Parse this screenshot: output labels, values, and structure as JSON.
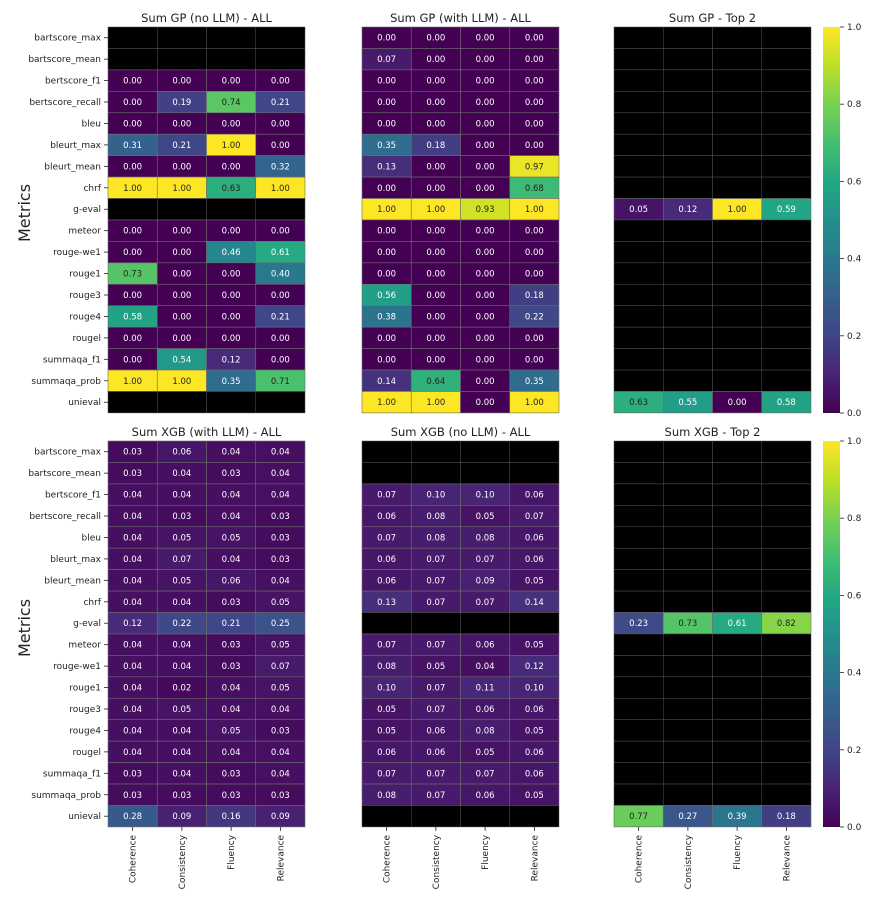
{
  "row_labels": [
    "bartscore_max",
    "bartscore_mean",
    "bertscore_f1",
    "bertscore_recall",
    "bleu",
    "bleurt_max",
    "bleurt_mean",
    "chrf",
    "g-eval",
    "meteor",
    "rouge-we1",
    "rouge1",
    "rouge3",
    "rouge4",
    "rougel",
    "summaqa_f1",
    "summaqa_prob",
    "unieval"
  ],
  "col_labels": [
    "Coherence",
    "Consistency",
    "Fluency",
    "Relevance"
  ],
  "ylabel": "Metrics",
  "colorbar_ticks": [
    "0.0",
    "0.2",
    "0.4",
    "0.6",
    "0.8",
    "1.0"
  ],
  "chart_data": [
    {
      "type": "heatmap",
      "title": "Sum GP (no LLM) - ALL",
      "rows": [
        "bartscore_max",
        "bartscore_mean",
        "bertscore_f1",
        "bertscore_recall",
        "bleu",
        "bleurt_max",
        "bleurt_mean",
        "chrf",
        "g-eval",
        "meteor",
        "rouge-we1",
        "rouge1",
        "rouge3",
        "rouge4",
        "rougel",
        "summaqa_f1",
        "summaqa_prob",
        "unieval"
      ],
      "cols": [
        "Coherence",
        "Consistency",
        "Fluency",
        "Relevance"
      ],
      "values": [
        [
          null,
          null,
          null,
          null
        ],
        [
          null,
          null,
          null,
          null
        ],
        [
          0.0,
          0.0,
          0.0,
          0.0
        ],
        [
          0.0,
          0.19,
          0.74,
          0.21
        ],
        [
          0.0,
          0.0,
          0.0,
          0.0
        ],
        [
          0.31,
          0.21,
          1.0,
          0.0
        ],
        [
          0.0,
          0.0,
          0.0,
          0.32
        ],
        [
          1.0,
          1.0,
          0.63,
          1.0
        ],
        [
          null,
          null,
          null,
          null
        ],
        [
          0.0,
          0.0,
          0.0,
          0.0
        ],
        [
          0.0,
          0.0,
          0.46,
          0.61
        ],
        [
          0.73,
          0.0,
          0.0,
          0.4
        ],
        [
          0.0,
          0.0,
          0.0,
          0.0
        ],
        [
          0.58,
          0.0,
          0.0,
          0.21
        ],
        [
          0.0,
          0.0,
          0.0,
          0.0
        ],
        [
          0.0,
          0.54,
          0.12,
          0.0
        ],
        [
          1.0,
          1.0,
          0.35,
          0.71
        ],
        [
          null,
          null,
          null,
          null
        ]
      ],
      "zlim": [
        0,
        1
      ],
      "colormap": "viridis"
    },
    {
      "type": "heatmap",
      "title": "Sum GP (with LLM) - ALL",
      "rows": [
        "bartscore_max",
        "bartscore_mean",
        "bertscore_f1",
        "bertscore_recall",
        "bleu",
        "bleurt_max",
        "bleurt_mean",
        "chrf",
        "g-eval",
        "meteor",
        "rouge-we1",
        "rouge1",
        "rouge3",
        "rouge4",
        "rougel",
        "summaqa_f1",
        "summaqa_prob",
        "unieval"
      ],
      "cols": [
        "Coherence",
        "Consistency",
        "Fluency",
        "Relevance"
      ],
      "values": [
        [
          0.0,
          0.0,
          0.0,
          0.0
        ],
        [
          0.07,
          0.0,
          0.0,
          0.0
        ],
        [
          0.0,
          0.0,
          0.0,
          0.0
        ],
        [
          0.0,
          0.0,
          0.0,
          0.0
        ],
        [
          0.0,
          0.0,
          0.0,
          0.0
        ],
        [
          0.35,
          0.18,
          0.0,
          0.0
        ],
        [
          0.13,
          0.0,
          0.0,
          0.97
        ],
        [
          0.0,
          0.0,
          0.0,
          0.68
        ],
        [
          1.0,
          1.0,
          0.93,
          1.0
        ],
        [
          0.0,
          0.0,
          0.0,
          0.0
        ],
        [
          0.0,
          0.0,
          0.0,
          0.0
        ],
        [
          0.0,
          0.0,
          0.0,
          0.0
        ],
        [
          0.56,
          0.0,
          0.0,
          0.18
        ],
        [
          0.38,
          0.0,
          0.0,
          0.22
        ],
        [
          0.0,
          0.0,
          0.0,
          0.0
        ],
        [
          0.0,
          0.0,
          0.0,
          0.0
        ],
        [
          0.14,
          0.64,
          0.0,
          0.35
        ],
        [
          1.0,
          1.0,
          0.0,
          1.0
        ]
      ],
      "zlim": [
        0,
        1
      ],
      "colormap": "viridis"
    },
    {
      "type": "heatmap",
      "title": "Sum GP - Top 2",
      "rows": [
        "bartscore_max",
        "bartscore_mean",
        "bertscore_f1",
        "bertscore_recall",
        "bleu",
        "bleurt_max",
        "bleurt_mean",
        "chrf",
        "g-eval",
        "meteor",
        "rouge-we1",
        "rouge1",
        "rouge3",
        "rouge4",
        "rougel",
        "summaqa_f1",
        "summaqa_prob",
        "unieval"
      ],
      "cols": [
        "Coherence",
        "Consistency",
        "Fluency",
        "Relevance"
      ],
      "values": [
        [
          null,
          null,
          null,
          null
        ],
        [
          null,
          null,
          null,
          null
        ],
        [
          null,
          null,
          null,
          null
        ],
        [
          null,
          null,
          null,
          null
        ],
        [
          null,
          null,
          null,
          null
        ],
        [
          null,
          null,
          null,
          null
        ],
        [
          null,
          null,
          null,
          null
        ],
        [
          null,
          null,
          null,
          null
        ],
        [
          0.05,
          0.12,
          1.0,
          0.59
        ],
        [
          null,
          null,
          null,
          null
        ],
        [
          null,
          null,
          null,
          null
        ],
        [
          null,
          null,
          null,
          null
        ],
        [
          null,
          null,
          null,
          null
        ],
        [
          null,
          null,
          null,
          null
        ],
        [
          null,
          null,
          null,
          null
        ],
        [
          null,
          null,
          null,
          null
        ],
        [
          null,
          null,
          null,
          null
        ],
        [
          0.63,
          0.55,
          0.0,
          0.58
        ]
      ],
      "zlim": [
        0,
        1
      ],
      "colormap": "viridis"
    },
    {
      "type": "heatmap",
      "title": "Sum XGB (with LLM) - ALL",
      "rows": [
        "bartscore_max",
        "bartscore_mean",
        "bertscore_f1",
        "bertscore_recall",
        "bleu",
        "bleurt_max",
        "bleurt_mean",
        "chrf",
        "g-eval",
        "meteor",
        "rouge-we1",
        "rouge1",
        "rouge3",
        "rouge4",
        "rougel",
        "summaqa_f1",
        "summaqa_prob",
        "unieval"
      ],
      "cols": [
        "Coherence",
        "Consistency",
        "Fluency",
        "Relevance"
      ],
      "values": [
        [
          0.03,
          0.06,
          0.04,
          0.04
        ],
        [
          0.03,
          0.04,
          0.03,
          0.04
        ],
        [
          0.04,
          0.04,
          0.04,
          0.04
        ],
        [
          0.04,
          0.03,
          0.04,
          0.03
        ],
        [
          0.04,
          0.05,
          0.05,
          0.03
        ],
        [
          0.04,
          0.07,
          0.04,
          0.03
        ],
        [
          0.04,
          0.05,
          0.06,
          0.04
        ],
        [
          0.04,
          0.04,
          0.03,
          0.05
        ],
        [
          0.12,
          0.22,
          0.21,
          0.25
        ],
        [
          0.04,
          0.04,
          0.03,
          0.05
        ],
        [
          0.04,
          0.04,
          0.03,
          0.07
        ],
        [
          0.04,
          0.02,
          0.04,
          0.05
        ],
        [
          0.04,
          0.05,
          0.04,
          0.04
        ],
        [
          0.04,
          0.04,
          0.05,
          0.03
        ],
        [
          0.04,
          0.04,
          0.04,
          0.04
        ],
        [
          0.03,
          0.04,
          0.03,
          0.04
        ],
        [
          0.03,
          0.03,
          0.03,
          0.03
        ],
        [
          0.28,
          0.09,
          0.16,
          0.09
        ]
      ],
      "zlim": [
        0,
        1
      ],
      "colormap": "viridis"
    },
    {
      "type": "heatmap",
      "title": "Sum XGB (no LLM) - ALL",
      "rows": [
        "bartscore_max",
        "bartscore_mean",
        "bertscore_f1",
        "bertscore_recall",
        "bleu",
        "bleurt_max",
        "bleurt_mean",
        "chrf",
        "g-eval",
        "meteor",
        "rouge-we1",
        "rouge1",
        "rouge3",
        "rouge4",
        "rougel",
        "summaqa_f1",
        "summaqa_prob",
        "unieval"
      ],
      "cols": [
        "Coherence",
        "Consistency",
        "Fluency",
        "Relevance"
      ],
      "values": [
        [
          null,
          null,
          null,
          null
        ],
        [
          null,
          null,
          null,
          null
        ],
        [
          0.07,
          0.1,
          0.1,
          0.06
        ],
        [
          0.06,
          0.08,
          0.05,
          0.07
        ],
        [
          0.07,
          0.08,
          0.08,
          0.06
        ],
        [
          0.06,
          0.07,
          0.07,
          0.06
        ],
        [
          0.06,
          0.07,
          0.09,
          0.05
        ],
        [
          0.13,
          0.07,
          0.07,
          0.14
        ],
        [
          null,
          null,
          null,
          null
        ],
        [
          0.07,
          0.07,
          0.06,
          0.05
        ],
        [
          0.08,
          0.05,
          0.04,
          0.12
        ],
        [
          0.1,
          0.07,
          0.11,
          0.1
        ],
        [
          0.05,
          0.07,
          0.06,
          0.06
        ],
        [
          0.05,
          0.06,
          0.08,
          0.05
        ],
        [
          0.06,
          0.06,
          0.05,
          0.06
        ],
        [
          0.07,
          0.07,
          0.07,
          0.06
        ],
        [
          0.08,
          0.07,
          0.06,
          0.05
        ],
        [
          null,
          null,
          null,
          null
        ]
      ],
      "zlim": [
        0,
        1
      ],
      "colormap": "viridis"
    },
    {
      "type": "heatmap",
      "title": "Sum XGB - Top 2",
      "rows": [
        "bartscore_max",
        "bartscore_mean",
        "bertscore_f1",
        "bertscore_recall",
        "bleu",
        "bleurt_max",
        "bleurt_mean",
        "chrf",
        "g-eval",
        "meteor",
        "rouge-we1",
        "rouge1",
        "rouge3",
        "rouge4",
        "rougel",
        "summaqa_f1",
        "summaqa_prob",
        "unieval"
      ],
      "cols": [
        "Coherence",
        "Consistency",
        "Fluency",
        "Relevance"
      ],
      "values": [
        [
          null,
          null,
          null,
          null
        ],
        [
          null,
          null,
          null,
          null
        ],
        [
          null,
          null,
          null,
          null
        ],
        [
          null,
          null,
          null,
          null
        ],
        [
          null,
          null,
          null,
          null
        ],
        [
          null,
          null,
          null,
          null
        ],
        [
          null,
          null,
          null,
          null
        ],
        [
          null,
          null,
          null,
          null
        ],
        [
          0.23,
          0.73,
          0.61,
          0.82
        ],
        [
          null,
          null,
          null,
          null
        ],
        [
          null,
          null,
          null,
          null
        ],
        [
          null,
          null,
          null,
          null
        ],
        [
          null,
          null,
          null,
          null
        ],
        [
          null,
          null,
          null,
          null
        ],
        [
          null,
          null,
          null,
          null
        ],
        [
          null,
          null,
          null,
          null
        ],
        [
          null,
          null,
          null,
          null
        ],
        [
          0.77,
          0.27,
          0.39,
          0.18
        ]
      ],
      "zlim": [
        0,
        1
      ],
      "colormap": "viridis"
    }
  ]
}
